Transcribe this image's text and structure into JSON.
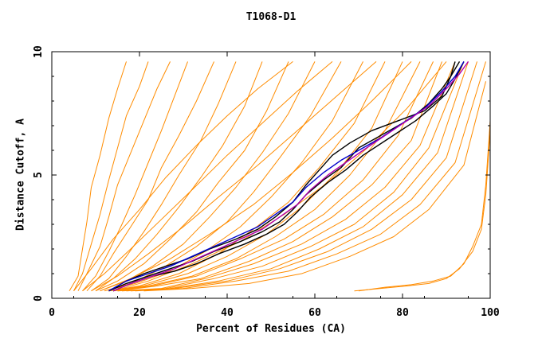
{
  "chart_data": {
    "type": "line",
    "title": "T1068-D1",
    "xlabel": "Percent of Residues (CA)",
    "ylabel": "Distance Cutoff, A",
    "xlim": [
      0,
      100
    ],
    "ylim": [
      0,
      10
    ],
    "x_ticks": [
      "0",
      "20",
      "40",
      "60",
      "80",
      "100"
    ],
    "y_ticks": [
      "0",
      "5",
      "10"
    ],
    "grid": false,
    "legend": "none",
    "colors": {
      "background_models": "#ff8c00",
      "highlight_black": "#000000",
      "highlight_blue": "#0000cc",
      "highlight_purple": "#b000b0",
      "frame": "#000000"
    },
    "series": [
      {
        "color": "#ff8c00",
        "x": [
          4,
          6,
          7,
          8,
          9,
          11,
          13,
          15,
          17
        ],
        "y": [
          0.3,
          0.9,
          2.0,
          3.1,
          4.5,
          5.8,
          7.3,
          8.5,
          9.6
        ]
      },
      {
        "color": "#ff8c00",
        "x": [
          5,
          7,
          9,
          11,
          13,
          15,
          17,
          20,
          22
        ],
        "y": [
          0.3,
          1.0,
          2.2,
          3.4,
          4.8,
          6.1,
          7.4,
          8.6,
          9.6
        ]
      },
      {
        "color": "#ff8c00",
        "x": [
          6,
          8,
          11,
          13,
          15,
          18,
          21,
          24,
          27
        ],
        "y": [
          0.3,
          1.0,
          2.1,
          3.3,
          4.6,
          5.9,
          7.2,
          8.5,
          9.6
        ]
      },
      {
        "color": "#ff8c00",
        "x": [
          7,
          10,
          13,
          16,
          19,
          22,
          25,
          28,
          31
        ],
        "y": [
          0.3,
          0.9,
          1.9,
          3.0,
          4.2,
          5.5,
          6.8,
          8.2,
          9.6
        ]
      },
      {
        "color": "#ff8c00",
        "x": [
          8,
          11,
          14,
          18,
          22,
          25,
          29,
          33,
          37
        ],
        "y": [
          0.3,
          0.9,
          1.8,
          2.9,
          4.0,
          5.3,
          6.6,
          8.0,
          9.6
        ]
      },
      {
        "color": "#ff8c00",
        "x": [
          9,
          13,
          17,
          21,
          25,
          29,
          34,
          38,
          42
        ],
        "y": [
          0.3,
          0.8,
          1.7,
          2.7,
          3.8,
          5.0,
          6.4,
          7.9,
          9.6
        ]
      },
      {
        "color": "#ff8c00",
        "x": [
          10,
          14,
          19,
          24,
          29,
          34,
          39,
          44,
          48
        ],
        "y": [
          0.3,
          0.8,
          1.6,
          2.6,
          3.7,
          4.9,
          6.2,
          7.8,
          9.6
        ]
      },
      {
        "color": "#ff8c00",
        "x": [
          10,
          15,
          21,
          27,
          33,
          38,
          44,
          49,
          54
        ],
        "y": [
          0.3,
          0.7,
          1.4,
          2.4,
          3.5,
          4.7,
          6.0,
          7.6,
          9.6
        ]
      },
      {
        "color": "#ff8c00",
        "x": [
          11,
          17,
          23,
          30,
          36,
          42,
          48,
          54,
          60
        ],
        "y": [
          0.3,
          0.7,
          1.3,
          2.2,
          3.3,
          4.5,
          5.9,
          7.5,
          9.6
        ]
      },
      {
        "color": "#ff8c00",
        "x": [
          12,
          18,
          25,
          33,
          40,
          46,
          52,
          59,
          66
        ],
        "y": [
          0.3,
          0.6,
          1.2,
          2.1,
          3.1,
          4.3,
          5.7,
          7.4,
          9.6
        ]
      },
      {
        "color": "#ff8c00",
        "x": [
          12,
          19,
          27,
          35,
          43,
          50,
          57,
          64,
          71
        ],
        "y": [
          0.3,
          0.6,
          1.1,
          1.9,
          2.9,
          4.1,
          5.5,
          7.2,
          9.6
        ]
      },
      {
        "color": "#ff8c00",
        "x": [
          13,
          20,
          29,
          38,
          46,
          54,
          61,
          69,
          76
        ],
        "y": [
          0.3,
          0.5,
          1.0,
          1.8,
          2.8,
          3.9,
          5.3,
          7.1,
          9.6
        ]
      },
      {
        "color": "#ff8c00",
        "x": [
          13,
          21,
          31,
          40,
          49,
          57,
          65,
          73,
          80
        ],
        "y": [
          0.3,
          0.5,
          1.0,
          1.7,
          2.6,
          3.7,
          5.1,
          6.9,
          9.6
        ]
      },
      {
        "color": "#ff8c00",
        "x": [
          14,
          22,
          32,
          42,
          51,
          60,
          68,
          76,
          84
        ],
        "y": [
          0.3,
          0.5,
          0.9,
          1.6,
          2.5,
          3.6,
          5.0,
          6.8,
          9.6
        ]
      },
      {
        "color": "#ff8c00",
        "x": [
          14,
          23,
          33,
          43,
          53,
          62,
          71,
          79,
          87
        ],
        "y": [
          0.3,
          0.5,
          0.9,
          1.6,
          2.4,
          3.4,
          4.8,
          6.6,
          9.6
        ]
      },
      {
        "color": "#ff8c00",
        "x": [
          15,
          24,
          34,
          45,
          55,
          64,
          73,
          82,
          89
        ],
        "y": [
          0.3,
          0.5,
          0.8,
          1.5,
          2.3,
          3.3,
          4.6,
          6.4,
          9.6
        ]
      },
      {
        "color": "#ff8c00",
        "x": [
          15,
          25,
          35,
          46,
          57,
          67,
          76,
          84,
          92
        ],
        "y": [
          0.3,
          0.4,
          0.8,
          1.4,
          2.2,
          3.2,
          4.5,
          6.2,
          9.6
        ]
      },
      {
        "color": "#ff8c00",
        "x": [
          16,
          26,
          37,
          48,
          59,
          69,
          78,
          86,
          94
        ],
        "y": [
          0.3,
          0.4,
          0.8,
          1.3,
          2.1,
          3.0,
          4.3,
          6.1,
          9.6
        ]
      },
      {
        "color": "#ff8c00",
        "x": [
          17,
          27,
          38,
          50,
          61,
          71,
          80,
          88,
          95
        ],
        "y": [
          0.3,
          0.4,
          0.7,
          1.2,
          2.0,
          2.9,
          4.2,
          5.9,
          9.6
        ]
      },
      {
        "color": "#ff8c00",
        "x": [
          18,
          28,
          40,
          52,
          63,
          73,
          82,
          90,
          97
        ],
        "y": [
          0.3,
          0.4,
          0.7,
          1.2,
          1.9,
          2.8,
          4.0,
          5.7,
          9.6
        ]
      },
      {
        "color": "#ff8c00",
        "x": [
          19,
          30,
          42,
          54,
          65,
          75,
          84,
          92,
          99
        ],
        "y": [
          0.3,
          0.4,
          0.7,
          1.1,
          1.8,
          2.6,
          3.8,
          5.5,
          9.6
        ]
      },
      {
        "color": "#ff8c00",
        "x": [
          21,
          32,
          45,
          57,
          68,
          78,
          86,
          94,
          99
        ],
        "y": [
          0.3,
          0.4,
          0.6,
          1.0,
          1.7,
          2.5,
          3.6,
          5.4,
          8.8
        ]
      },
      {
        "color": "#ff8c00",
        "x": [
          5,
          9,
          14,
          20,
          26,
          33,
          40,
          47,
          55
        ],
        "y": [
          0.3,
          1.2,
          2.4,
          3.6,
          4.9,
          6.2,
          7.4,
          8.5,
          9.6
        ]
      },
      {
        "color": "#ff8c00",
        "x": [
          7,
          12,
          18,
          25,
          32,
          40,
          48,
          56,
          64
        ],
        "y": [
          0.3,
          1.0,
          2.0,
          3.2,
          4.4,
          5.8,
          7.1,
          8.4,
          9.6
        ]
      },
      {
        "color": "#ff8c00",
        "x": [
          9,
          15,
          22,
          30,
          38,
          47,
          56,
          65,
          74
        ],
        "y": [
          0.3,
          0.9,
          1.8,
          2.9,
          4.1,
          5.4,
          6.8,
          8.2,
          9.6
        ]
      },
      {
        "color": "#ff8c00",
        "x": [
          11,
          18,
          27,
          36,
          46,
          55,
          64,
          73,
          82
        ],
        "y": [
          0.3,
          0.8,
          1.6,
          2.6,
          3.8,
          5.1,
          6.5,
          8.0,
          9.6
        ]
      },
      {
        "color": "#ff8c00",
        "x": [
          14,
          22,
          32,
          43,
          53,
          63,
          72,
          81,
          90
        ],
        "y": [
          0.3,
          0.7,
          1.4,
          2.3,
          3.4,
          4.7,
          6.1,
          7.7,
          9.6
        ]
      },
      {
        "color": "#ff8c00",
        "x": [
          69,
          75,
          81,
          86,
          90,
          93,
          96,
          98,
          99,
          100
        ],
        "y": [
          0.3,
          0.4,
          0.5,
          0.6,
          0.8,
          1.2,
          1.9,
          2.8,
          4.2,
          6.8
        ]
      },
      {
        "color": "#ff8c00",
        "x": [
          70,
          76,
          82,
          87,
          91,
          94,
          96,
          98,
          99,
          100
        ],
        "y": [
          0.3,
          0.45,
          0.55,
          0.7,
          0.9,
          1.4,
          2.1,
          3.0,
          4.6,
          7.2
        ]
      },
      {
        "color": "#000000",
        "x": [
          13,
          17,
          22,
          27,
          32,
          37,
          43,
          48,
          52,
          55,
          58,
          62,
          66,
          70,
          76,
          82,
          86,
          89,
          91,
          93
        ],
        "y": [
          0.3,
          0.6,
          0.9,
          1.2,
          1.5,
          1.9,
          2.3,
          2.7,
          3.1,
          3.6,
          4.2,
          4.8,
          5.3,
          6.1,
          6.7,
          7.3,
          7.9,
          8.5,
          9.0,
          9.6
        ]
      },
      {
        "color": "#000000",
        "x": [
          14,
          18,
          23,
          28,
          33,
          38,
          44,
          49,
          53,
          56,
          59,
          63,
          67,
          71,
          77,
          83,
          87,
          90,
          92,
          94
        ],
        "y": [
          0.3,
          0.6,
          0.9,
          1.1,
          1.4,
          1.8,
          2.2,
          2.6,
          3.0,
          3.5,
          4.1,
          4.7,
          5.2,
          5.8,
          6.5,
          7.2,
          7.8,
          8.3,
          8.9,
          9.6
        ]
      },
      {
        "color": "#000000",
        "x": [
          13,
          17,
          21,
          26,
          31,
          36,
          42,
          47,
          51,
          55,
          58,
          61,
          64,
          68,
          73,
          79,
          85,
          89,
          91,
          92
        ],
        "y": [
          0.3,
          0.7,
          1.0,
          1.3,
          1.6,
          2.0,
          2.4,
          2.8,
          3.3,
          3.9,
          4.6,
          5.2,
          5.8,
          6.3,
          6.8,
          7.2,
          7.6,
          8.2,
          9.0,
          9.6
        ]
      },
      {
        "color": "#0000cc",
        "x": [
          13,
          17,
          22,
          27,
          32,
          37,
          42,
          47,
          51,
          55,
          58,
          62,
          66,
          70,
          75,
          80,
          85,
          89,
          92,
          94
        ],
        "y": [
          0.3,
          0.7,
          1.0,
          1.3,
          1.7,
          2.1,
          2.5,
          2.9,
          3.4,
          3.9,
          4.5,
          5.1,
          5.6,
          6.0,
          6.5,
          7.1,
          7.7,
          8.4,
          9.0,
          9.6
        ]
      },
      {
        "color": "#b000b0",
        "x": [
          14,
          18,
          23,
          28,
          33,
          38,
          43,
          48,
          52,
          56,
          59,
          63,
          67,
          71,
          76,
          81,
          86,
          90,
          93,
          95
        ],
        "y": [
          0.3,
          0.6,
          0.9,
          1.2,
          1.6,
          2.0,
          2.4,
          2.8,
          3.3,
          3.8,
          4.4,
          5.0,
          5.5,
          6.0,
          6.6,
          7.2,
          7.8,
          8.5,
          9.1,
          9.6
        ]
      }
    ]
  }
}
